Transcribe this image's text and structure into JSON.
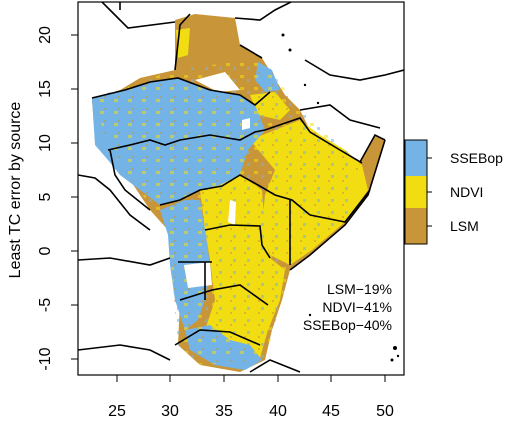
{
  "map": {
    "ylabel": "Least TC error by source",
    "x_ticks": [
      "25",
      "30",
      "35",
      "40",
      "45",
      "50"
    ],
    "y_ticks": [
      "20",
      "15",
      "10",
      "5",
      "0",
      "-5",
      "-10"
    ],
    "legend": [
      {
        "label": "SSEBop",
        "color": "#74b3e6"
      },
      {
        "label": "NDVI",
        "color": "#f2dc12"
      },
      {
        "label": "LSM",
        "color": "#c89638"
      }
    ],
    "stats": [
      "LSM−19%",
      "NDVI−41%",
      "SSEBop−40%"
    ]
  }
}
